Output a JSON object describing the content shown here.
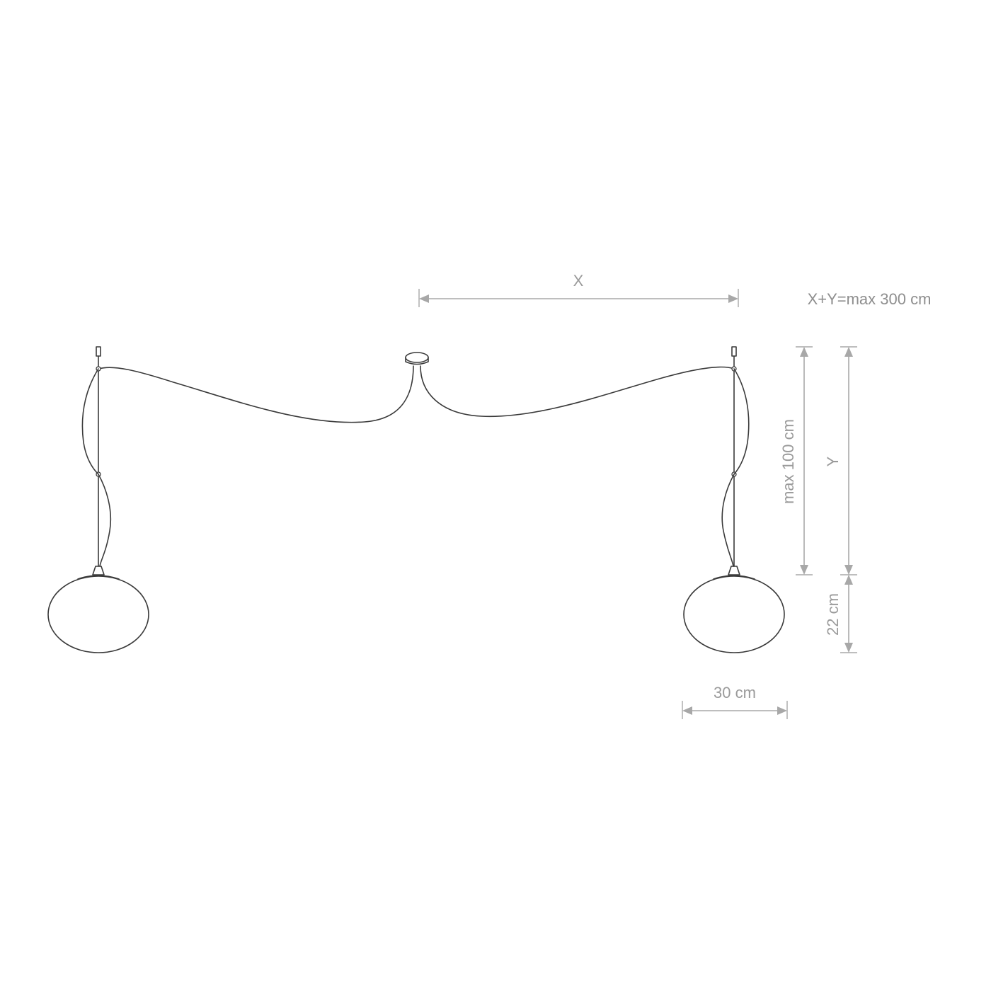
{
  "dimensions": {
    "x_label": "X",
    "y_label": "Y",
    "max_suspension_label": "max 100 cm",
    "shade_height_label": "22 cm",
    "shade_width_label": "30 cm"
  },
  "note": {
    "constraint": "X+Y=max 300 cm"
  },
  "colors": {
    "line_art": "#3a3a3a",
    "dimension": "#a8a8a8",
    "text": "#9a9a9a",
    "background": "#ffffff"
  }
}
